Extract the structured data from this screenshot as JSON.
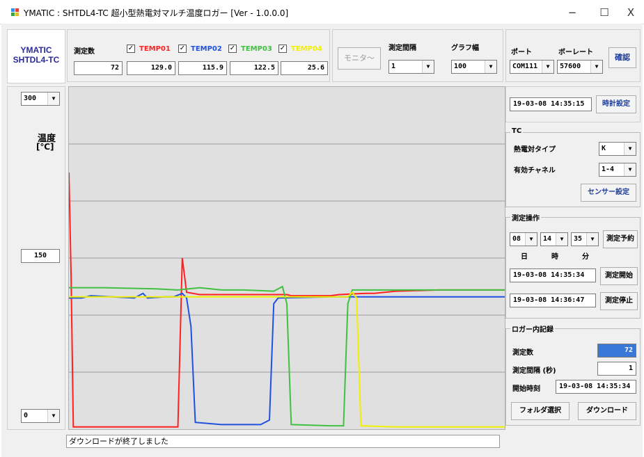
{
  "window": {
    "title": "YMATIC : SHTDL4-TC 超小型熱電対マルチ温度ロガー [Ver - 1.0.0.0]",
    "minimize": "−",
    "maximize": "☐",
    "close": "X"
  },
  "logo": {
    "line1": "YMATIC",
    "line2": "SHTDL4-TC"
  },
  "measure": {
    "count_label": "測定数",
    "count_value": "72",
    "channels": [
      {
        "label": "TEMP01",
        "value": "129.0",
        "checked": "✓",
        "color": "#ff2020"
      },
      {
        "label": "TEMP02",
        "value": "115.9",
        "checked": "✓",
        "color": "#2050e0"
      },
      {
        "label": "TEMP03",
        "value": "122.5",
        "checked": "✓",
        "color": "#40c040"
      },
      {
        "label": "TEMP04",
        "value": "25.6",
        "checked": "✓",
        "color": "#f0f000"
      }
    ]
  },
  "monitor_button": "モニタ～",
  "interval": {
    "label": "測定間隔",
    "value": "1"
  },
  "graph_width": {
    "label": "グラフ幅",
    "value": "100"
  },
  "port": {
    "label": "ポート",
    "value": "COM111"
  },
  "baud": {
    "label": "ボーレート",
    "value": "57600"
  },
  "confirm_button": "確認",
  "y_axis": {
    "max": "300",
    "mid": "150",
    "min": "0",
    "label_line1": "温度",
    "label_line2": "[℃]"
  },
  "clock": {
    "value": "19-03-08 14:35:15",
    "button": "時計設定"
  },
  "tc_group": {
    "title": "TC",
    "type_label": "熱電対タイプ",
    "type_value": "K",
    "channel_label": "有効チャネル",
    "channel_value": "1-4",
    "sensor_button": "センサー設定"
  },
  "operation_group": {
    "title": "測定操作",
    "day": "08",
    "hour": "14",
    "minute": "35",
    "day_label": "日",
    "hour_label": "時",
    "minute_label": "分",
    "reserve_button": "測定予約",
    "start_time": "19-03-08 14:35:34",
    "start_button": "測定開始",
    "stop_time": "19-03-08 14:36:47",
    "stop_button": "測定停止"
  },
  "logger_group": {
    "title": "ロガー内記録",
    "count_label": "測定数",
    "count_value": "72",
    "interval_label": "測定間隔 (秒)",
    "interval_value": "1",
    "start_label": "開始時刻",
    "start_value": "19-03-08 14:35:34",
    "folder_button": "フォルダ選択",
    "download_button": "ダウンロード"
  },
  "status_text": "ダウンロードが終了しました",
  "chart_data": {
    "type": "line",
    "ylim": [
      0,
      300
    ],
    "x": [
      0,
      100
    ],
    "series": [
      {
        "name": "TEMP01",
        "color": "#ff2020",
        "points": [
          [
            0,
            225
          ],
          [
            0.5,
            135
          ],
          [
            1,
            2
          ],
          [
            2,
            2
          ],
          [
            10,
            2
          ],
          [
            24,
            2
          ],
          [
            25,
            2
          ],
          [
            26,
            150
          ],
          [
            27,
            120
          ],
          [
            30,
            118
          ],
          [
            40,
            118
          ],
          [
            50,
            118
          ],
          [
            51,
            117
          ],
          [
            60,
            117
          ],
          [
            62,
            118
          ],
          [
            68,
            119
          ],
          [
            70,
            119
          ],
          [
            75,
            121
          ],
          [
            85,
            122
          ],
          [
            90,
            122
          ],
          [
            100,
            122
          ]
        ]
      },
      {
        "name": "TEMP02",
        "color": "#2050e0",
        "points": [
          [
            0,
            115
          ],
          [
            3,
            115
          ],
          [
            5,
            117
          ],
          [
            10,
            116
          ],
          [
            15,
            115
          ],
          [
            17,
            119
          ],
          [
            18,
            115
          ],
          [
            22,
            116
          ],
          [
            24,
            116
          ],
          [
            26,
            119
          ],
          [
            27,
            115
          ],
          [
            28,
            90
          ],
          [
            29,
            6
          ],
          [
            35,
            4
          ],
          [
            44,
            4
          ],
          [
            46,
            8
          ],
          [
            47,
            110
          ],
          [
            48,
            115
          ],
          [
            60,
            116
          ],
          [
            70,
            116
          ],
          [
            80,
            116
          ],
          [
            100,
            116
          ]
        ]
      },
      {
        "name": "TEMP03",
        "color": "#40c040",
        "points": [
          [
            0,
            124
          ],
          [
            8,
            124
          ],
          [
            20,
            123
          ],
          [
            25,
            122
          ],
          [
            30,
            124
          ],
          [
            35,
            122
          ],
          [
            40,
            122
          ],
          [
            47,
            121
          ],
          [
            49,
            125
          ],
          [
            50,
            110
          ],
          [
            51,
            4
          ],
          [
            60,
            3
          ],
          [
            63,
            3
          ],
          [
            64,
            110
          ],
          [
            65,
            122
          ],
          [
            70,
            122
          ],
          [
            80,
            122
          ],
          [
            100,
            122
          ]
        ]
      },
      {
        "name": "TEMP04",
        "color": "#f0f000",
        "points": [
          [
            0,
            116
          ],
          [
            10,
            116
          ],
          [
            20,
            116
          ],
          [
            30,
            116
          ],
          [
            40,
            116
          ],
          [
            50,
            116
          ],
          [
            60,
            116
          ],
          [
            64,
            116
          ],
          [
            65,
            120
          ],
          [
            66,
            115
          ],
          [
            67,
            3
          ],
          [
            75,
            2
          ],
          [
            90,
            2
          ],
          [
            100,
            2
          ]
        ]
      }
    ]
  }
}
